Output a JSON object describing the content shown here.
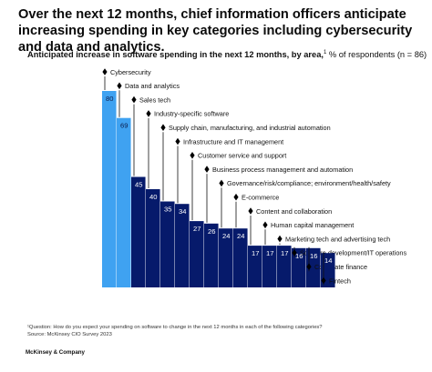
{
  "title": "Over the next 12 months, chief information officers anticipate increasing spending in key categories including cybersecurity and data and analytics.",
  "subtitle_bold": "Anticipated increase in software spending in the next 12 months, by area,",
  "subtitle_sup": "1",
  "subtitle_rest": " % of respondents (n = 86)",
  "footnote_q": "¹Question: How do you expect your spending on software to change in the next 12 months in each of the following categories?",
  "footnote_source": "Source: McKinsey CIO Survey 2023",
  "brand": "McKinsey & Company",
  "colors": {
    "light_blue": "#3fa2f1",
    "dark_navy": "#061a6b",
    "connector": "#111111"
  },
  "chart_data": {
    "type": "bar",
    "title": "Anticipated increase in software spending in the next 12 months, by area",
    "ylabel": "% of respondents (n = 86)",
    "categories": [
      "Cybersecurity",
      "Data and analytics",
      "Sales tech",
      "Industry-specific software",
      "Supply chain, manufacturing, and industrial automation",
      "Infrastructure and IT management",
      "Customer service and support",
      "Business process management and automation",
      "Governance/risk/compliance; environment/health/safety",
      "E-commerce",
      "Content and collaboration",
      "Human capital management",
      "Marketing tech and advertising tech",
      "Software development/IT operations",
      "Corporate finance",
      "Fintech"
    ],
    "values": [
      80,
      69,
      45,
      40,
      35,
      34,
      27,
      26,
      24,
      24,
      17,
      17,
      17,
      16,
      16,
      14
    ],
    "highlighted": [
      true,
      true,
      false,
      false,
      false,
      false,
      false,
      false,
      false,
      false,
      false,
      false,
      false,
      false,
      false,
      false
    ],
    "ylim": [
      0,
      80
    ],
    "grid": false,
    "legend": "none"
  }
}
